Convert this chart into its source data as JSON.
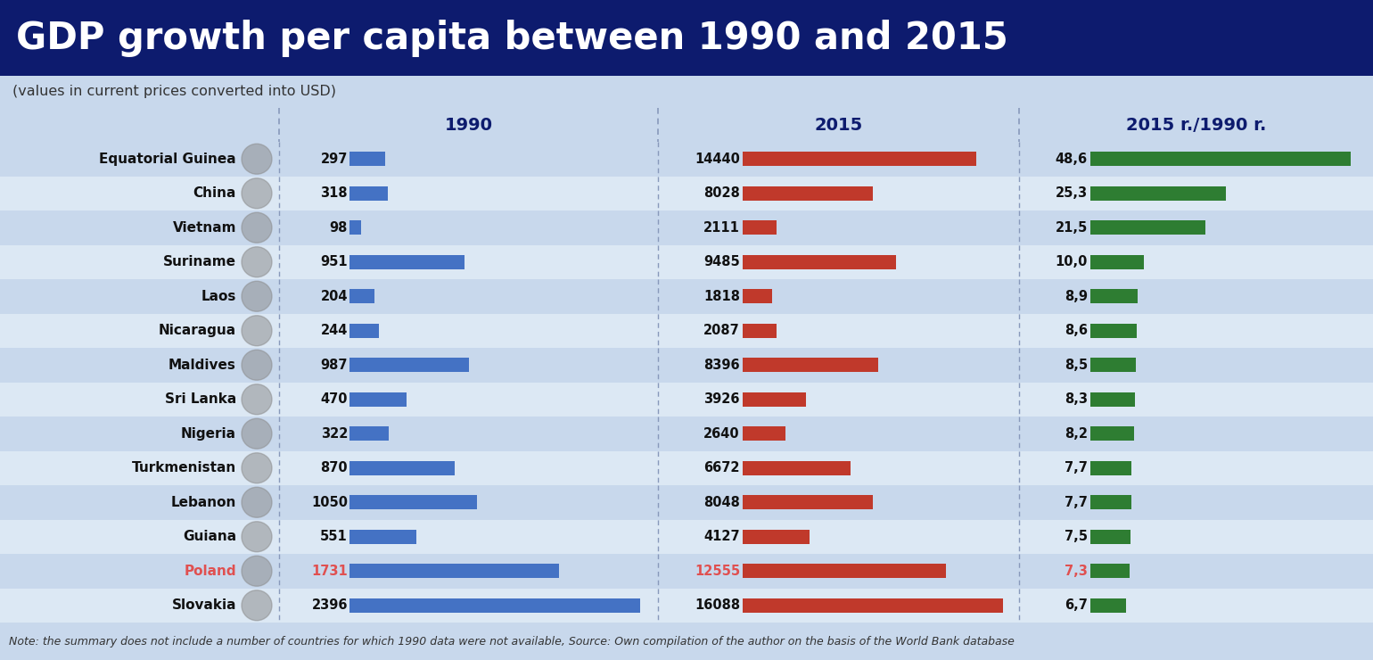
{
  "title": "GDP growth per capita between 1990 and 2015",
  "subtitle": "(values in current prices converted into USD)",
  "note": "Note: the summary does not include a number of countries for which 1990 data were not available, Source: Own compilation of the author on the basis of the World Bank database",
  "col_1990": "1990",
  "col_2015": "2015",
  "col_ratio": "2015 r./1990 r.",
  "countries": [
    "Equatorial Guinea",
    "China",
    "Vietnam",
    "Suriname",
    "Laos",
    "Nicaragua",
    "Maldives",
    "Sri Lanka",
    "Nigeria",
    "Turkmenistan",
    "Lebanon",
    "Guiana",
    "Poland",
    "Slovakia"
  ],
  "values_1990": [
    297,
    318,
    98,
    951,
    204,
    244,
    987,
    470,
    322,
    870,
    1050,
    551,
    1731,
    2396
  ],
  "values_2015": [
    14440,
    8028,
    2111,
    9485,
    1818,
    2087,
    8396,
    3926,
    2640,
    6672,
    8048,
    4127,
    12555,
    16088
  ],
  "values_ratio": [
    48.6,
    25.3,
    21.5,
    10.0,
    8.9,
    8.6,
    8.5,
    8.3,
    8.2,
    7.7,
    7.7,
    7.5,
    7.3,
    6.7
  ],
  "poland_index": 12,
  "title_bg": "#0d1b6e",
  "title_fg": "#ffffff",
  "subtitle_bg": "#c8d8ec",
  "row_bg_odd": "#c8d8ec",
  "row_bg_even": "#dce8f4",
  "header_bg": "#c8d8ec",
  "bar_1990_color": "#4472c4",
  "bar_2015_color": "#c0392b",
  "bar_ratio_color": "#2e7d32",
  "poland_color": "#e05050",
  "note_bg": "#c8d8ec",
  "divider_color": "#8899bb",
  "header_text_color": "#0d1b6e"
}
